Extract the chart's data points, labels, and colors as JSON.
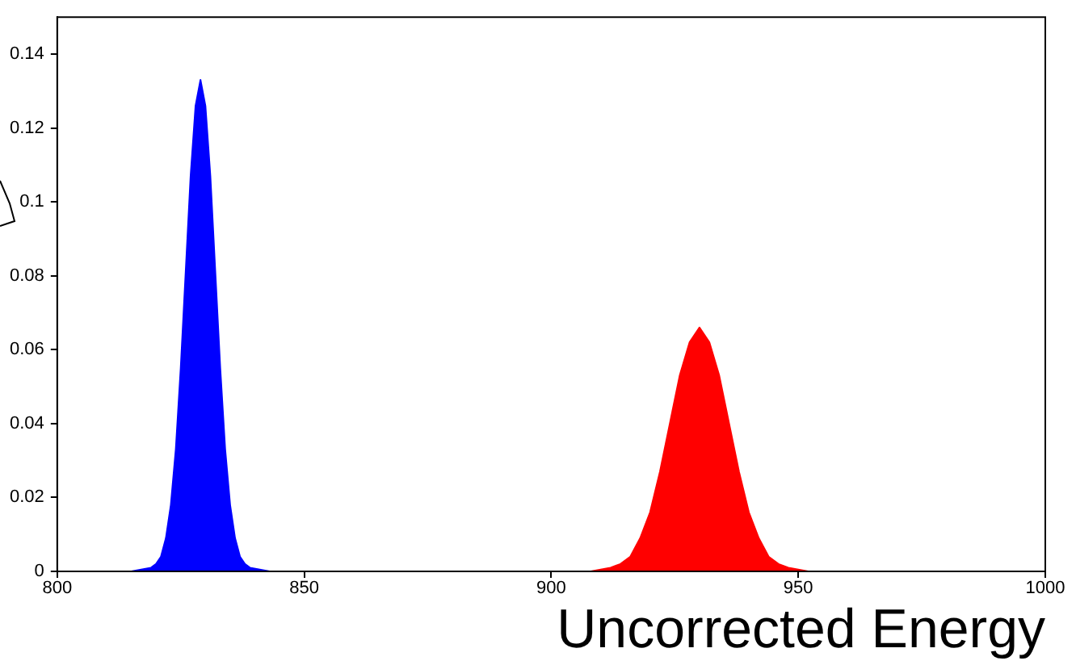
{
  "chart_data": {
    "type": "area",
    "xlabel": "Uncorrected Energy",
    "xlim": [
      800,
      1000
    ],
    "xticks": [
      800,
      850,
      900,
      950,
      1000
    ],
    "ylim": [
      0,
      0.15
    ],
    "yticks": [
      0,
      0.02,
      0.04,
      0.06,
      0.08,
      0.1,
      0.12,
      0.14
    ],
    "grid": false,
    "legend": false,
    "marker": "none",
    "series": [
      {
        "color": "#0000ff",
        "x": [
          815,
          819,
          820,
          821,
          822,
          823,
          824,
          825,
          826,
          827,
          828,
          829,
          830,
          831,
          832,
          833,
          834,
          835,
          836,
          837,
          838,
          839,
          843
        ],
        "values": [
          0,
          0.001,
          0.002,
          0.004,
          0.009,
          0.018,
          0.033,
          0.055,
          0.081,
          0.107,
          0.126,
          0.133,
          0.126,
          0.107,
          0.081,
          0.055,
          0.033,
          0.018,
          0.009,
          0.004,
          0.002,
          0.001,
          0
        ]
      },
      {
        "color": "#ff0000",
        "x": [
          908,
          912,
          914,
          916,
          918,
          920,
          922,
          924,
          926,
          928,
          930,
          932,
          934,
          936,
          938,
          940,
          942,
          944,
          946,
          948,
          952
        ],
        "values": [
          0,
          0.001,
          0.002,
          0.004,
          0.009,
          0.016,
          0.027,
          0.04,
          0.053,
          0.062,
          0.066,
          0.062,
          0.053,
          0.04,
          0.027,
          0.016,
          0.009,
          0.004,
          0.002,
          0.001,
          0
        ]
      }
    ]
  }
}
